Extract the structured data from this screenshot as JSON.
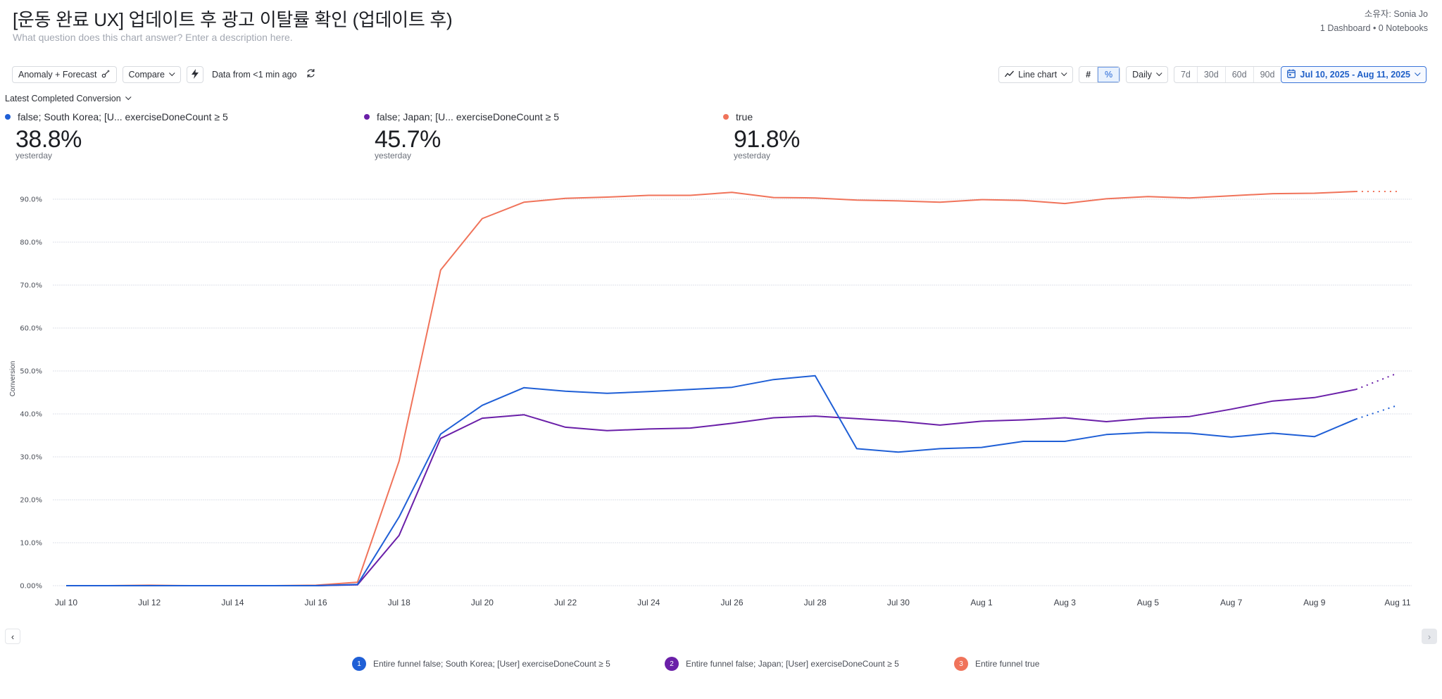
{
  "header": {
    "title": "[운동 완료 UX] 업데이트 후 광고 이탈률 확인 (업데이트 후)",
    "subtitle": "What question does this chart answer? Enter a description here.",
    "owner": "소유자: Sonia Jo",
    "meta": "1 Dashboard • 0 Notebooks"
  },
  "toolbar": {
    "anomaly_label": "Anomaly + Forecast",
    "compare_label": "Compare",
    "data_freshness": "Data from <1 min ago",
    "chart_type_label": "Line chart",
    "count_toggle": "#",
    "percent_toggle": "%",
    "interval_label": "Daily",
    "ranges": [
      "7d",
      "30d",
      "60d",
      "90d"
    ],
    "date_range": "Jul 10, 2025 - Aug 11, 2025"
  },
  "metric_selector": "Latest Completed Conversion",
  "kpis": [
    {
      "label": "false; South Korea; [U...  exerciseDoneCount ≥ 5",
      "value": "38.8%",
      "sub": "yesterday",
      "color": "#1f5fd6"
    },
    {
      "label": "false; Japan; [U...  exerciseDoneCount ≥ 5",
      "value": "45.7%",
      "sub": "yesterday",
      "color": "#6a1fa8"
    },
    {
      "label": "true",
      "value": "91.8%",
      "sub": "yesterday",
      "color": "#f0735a"
    }
  ],
  "legend": [
    {
      "num": "1",
      "label": "Entire funnel false; South Korea; [User] exerciseDoneCount ≥ 5",
      "color": "#1f5fd6"
    },
    {
      "num": "2",
      "label": "Entire funnel false; Japan; [User] exerciseDoneCount ≥ 5",
      "color": "#6a1fa8"
    },
    {
      "num": "3",
      "label": "Entire funnel true",
      "color": "#f0735a"
    }
  ],
  "nav": {
    "prev": "‹",
    "next": "›"
  },
  "chart_data": {
    "type": "line",
    "title": "",
    "xlabel": "",
    "ylabel": "Conversion",
    "ylim": [
      0,
      90
    ],
    "yticks": [
      0,
      10,
      20,
      30,
      40,
      50,
      60,
      70,
      80,
      90
    ],
    "ytick_labels": [
      "0.00%",
      "10.0%",
      "20.0%",
      "30.0%",
      "40.0%",
      "50.0%",
      "60.0%",
      "70.0%",
      "80.0%",
      "90.0%"
    ],
    "grid": true,
    "x": [
      "Jul 10",
      "Jul 11",
      "Jul 12",
      "Jul 13",
      "Jul 14",
      "Jul 15",
      "Jul 16",
      "Jul 17",
      "Jul 18",
      "Jul 19",
      "Jul 20",
      "Jul 21",
      "Jul 22",
      "Jul 23",
      "Jul 24",
      "Jul 25",
      "Jul 26",
      "Jul 27",
      "Jul 28",
      "Jul 29",
      "Jul 30",
      "Jul 31",
      "Aug 1",
      "Aug 2",
      "Aug 3",
      "Aug 4",
      "Aug 5",
      "Aug 6",
      "Aug 7",
      "Aug 8",
      "Aug 9",
      "Aug 10",
      "Aug 11"
    ],
    "xtick_labels": [
      "Jul 10",
      "Jul 12",
      "Jul 14",
      "Jul 16",
      "Jul 18",
      "Jul 20",
      "Jul 22",
      "Jul 24",
      "Jul 26",
      "Jul 28",
      "Jul 30",
      "Aug 1",
      "Aug 3",
      "Aug 5",
      "Aug 7",
      "Aug 9",
      "Aug 11"
    ],
    "forecast_from_index": 31,
    "series": [
      {
        "name": "Entire funnel false; South Korea; [User] exerciseDoneCount ≥ 5",
        "color": "#1f5fd6",
        "values": [
          0,
          0,
          0,
          0,
          0,
          0,
          0,
          0.3,
          16,
          35.3,
          42,
          46.1,
          45.3,
          44.8,
          45.2,
          45.7,
          46.2,
          48,
          48.9,
          31.9,
          31.1,
          31.9,
          32.2,
          33.6,
          33.6,
          35.2,
          35.7,
          35.5,
          34.6,
          35.5,
          34.7,
          38.8,
          42
        ]
      },
      {
        "name": "Entire funnel false; Japan; [User] exerciseDoneCount ≥ 5",
        "color": "#6a1fa8",
        "values": [
          0,
          0,
          0,
          0,
          0,
          0,
          0,
          0.2,
          11.7,
          34.3,
          39,
          39.8,
          36.9,
          36.1,
          36.5,
          36.7,
          37.8,
          39.1,
          39.5,
          38.9,
          38.3,
          37.4,
          38.3,
          38.6,
          39.1,
          38.2,
          39,
          39.4,
          41.1,
          43,
          43.8,
          45.7,
          49.5
        ]
      },
      {
        "name": "Entire funnel true",
        "color": "#f0735a",
        "values": [
          0,
          0,
          0.1,
          0,
          0,
          0,
          0.1,
          0.8,
          29,
          73.5,
          85.5,
          89.3,
          90.2,
          90.5,
          90.9,
          90.9,
          91.6,
          90.4,
          90.3,
          89.8,
          89.6,
          89.3,
          89.9,
          89.7,
          89,
          90.1,
          90.6,
          90.3,
          90.8,
          91.3,
          91.4,
          91.8,
          91.8
        ]
      }
    ],
    "legend_position": "bottom"
  }
}
